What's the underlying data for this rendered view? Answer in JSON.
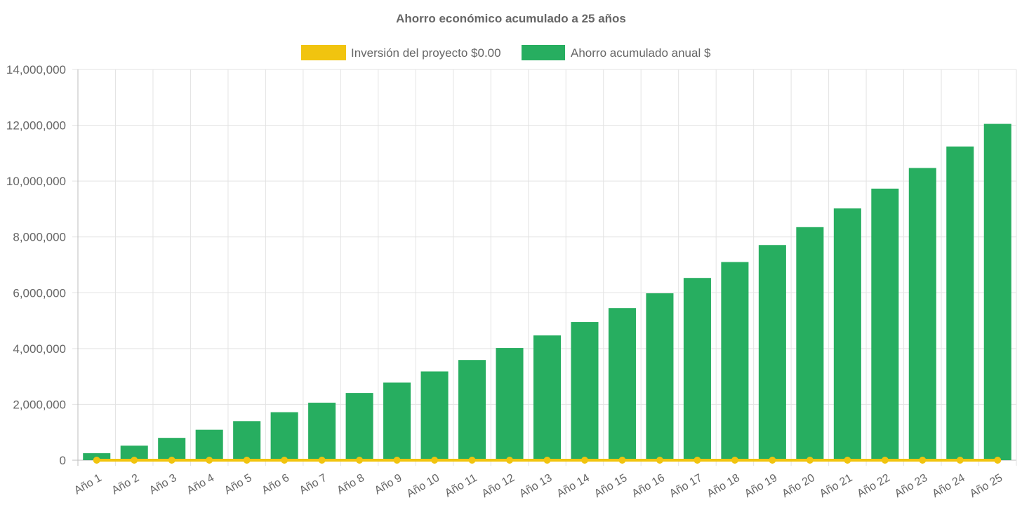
{
  "chart_data": {
    "type": "bar",
    "title": "Ahorro económico acumulado a 25 años",
    "categories": [
      "Año 1",
      "Año 2",
      "Año 3",
      "Año 4",
      "Año 5",
      "Año 6",
      "Año 7",
      "Año 8",
      "Año 9",
      "Año 10",
      "Año 11",
      "Año 12",
      "Año 13",
      "Año 14",
      "Año 15",
      "Año 16",
      "Año 17",
      "Año 18",
      "Año 19",
      "Año 20",
      "Año 21",
      "Año 22",
      "Año 23",
      "Año 24",
      "Año 25"
    ],
    "series": [
      {
        "name": "Inversión del proyecto $0.00",
        "type": "line",
        "color": "#f1c40f",
        "values": [
          0,
          0,
          0,
          0,
          0,
          0,
          0,
          0,
          0,
          0,
          0,
          0,
          0,
          0,
          0,
          0,
          0,
          0,
          0,
          0,
          0,
          0,
          0,
          0,
          0
        ]
      },
      {
        "name": "Ahorro acumulado anual $",
        "type": "bar",
        "color": "#27ae60",
        "values": [
          250000,
          520000,
          800000,
          1090000,
          1400000,
          1720000,
          2060000,
          2410000,
          2780000,
          3180000,
          3590000,
          4020000,
          4470000,
          4950000,
          5450000,
          5980000,
          6530000,
          7100000,
          7710000,
          8350000,
          9020000,
          9730000,
          10470000,
          11240000,
          12050000
        ]
      }
    ],
    "ylim": [
      0,
      14000000
    ],
    "yticks": [
      "0",
      "2,000,000",
      "4,000,000",
      "6,000,000",
      "8,000,000",
      "10,000,000",
      "12,000,000",
      "14,000,000"
    ],
    "xlabel": "",
    "ylabel": "",
    "legend_position": "top",
    "grid": true
  }
}
